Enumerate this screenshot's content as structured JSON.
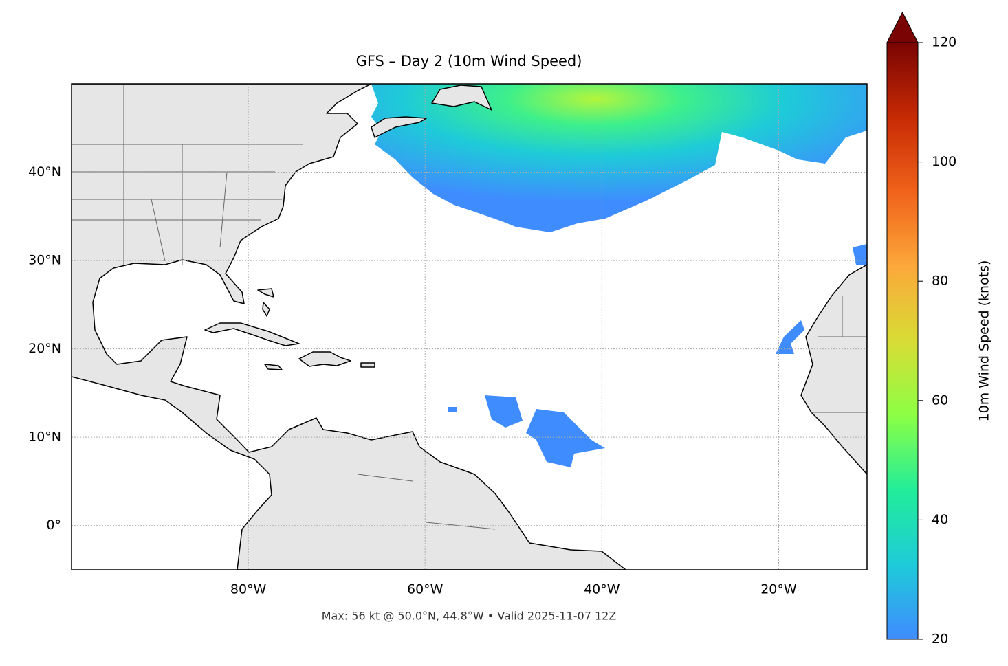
{
  "chart_data": {
    "type": "map",
    "title": "GFS – Day 2 (10m Wind Speed)",
    "xlim": [
      -100,
      -10
    ],
    "ylim": [
      -5,
      50
    ],
    "xticks": [
      {
        "value": -80,
        "label": "80°W"
      },
      {
        "value": -60,
        "label": "60°W"
      },
      {
        "value": -40,
        "label": "40°W"
      },
      {
        "value": -20,
        "label": "20°W"
      }
    ],
    "yticks": [
      {
        "value": 0,
        "label": "0°"
      },
      {
        "value": 10,
        "label": "10°N"
      },
      {
        "value": 20,
        "label": "20°N"
      },
      {
        "value": 30,
        "label": "30°N"
      },
      {
        "value": 40,
        "label": "40°N"
      }
    ],
    "grid": true,
    "colorbar": {
      "label": "10m Wind Speed (knots)",
      "lim": [
        20,
        120
      ],
      "ticks": [
        20,
        40,
        60,
        80,
        100,
        120
      ],
      "extend": "max",
      "colors": [
        "#3f8cff",
        "#1ecbd8",
        "#22ed9a",
        "#8cff44",
        "#d8dc35",
        "#fca83a",
        "#f0621a",
        "#c62a04",
        "#7a0403"
      ]
    },
    "footer": "Max: 56 kt @ 50.0°N, 44.8°W • Valid 2025-11-07 12Z"
  }
}
